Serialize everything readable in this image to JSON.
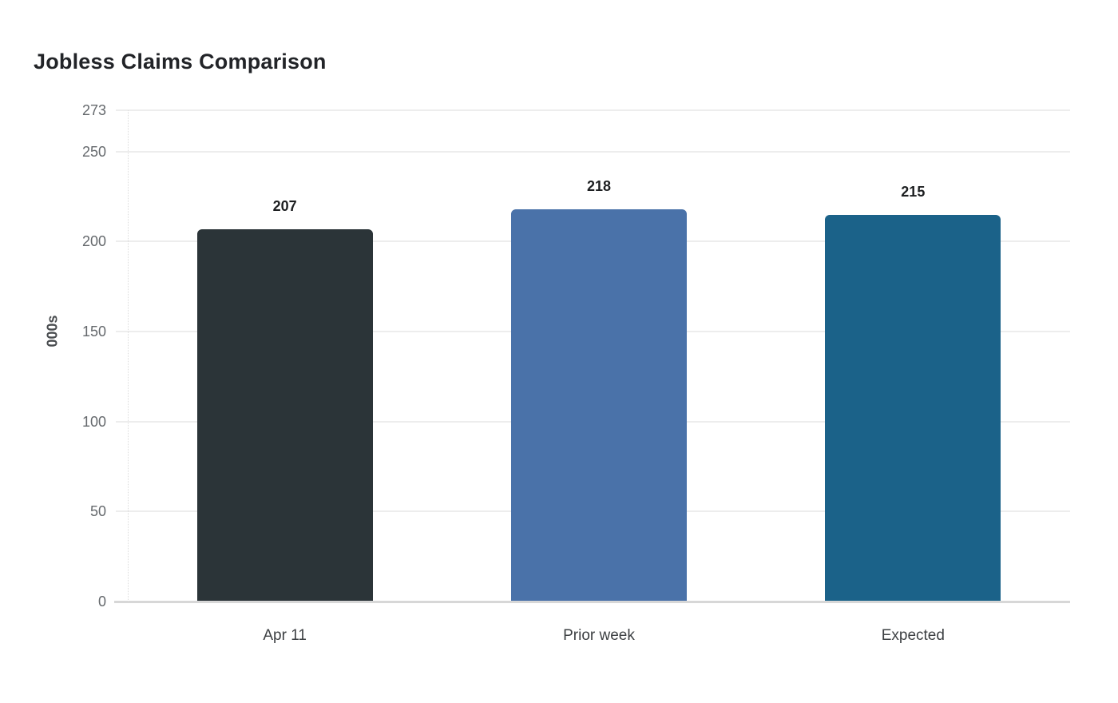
{
  "page": {
    "background_color": "#ffffff"
  },
  "chart_data": {
    "type": "bar",
    "title": "Jobless Claims Comparison",
    "xlabel": "",
    "ylabel": "000s",
    "categories": [
      "Apr 11",
      "Prior week",
      "Expected"
    ],
    "values": [
      207,
      218,
      215
    ],
    "data_labels": [
      "207",
      "218",
      "215"
    ],
    "bar_colors": [
      "#2b3438",
      "#4a72a9",
      "#1b6289"
    ],
    "ytick_values": [
      0,
      50,
      100,
      150,
      200,
      250,
      273
    ],
    "ytick_labels": [
      "0",
      "50",
      "100",
      "150",
      "200",
      "250",
      "273"
    ],
    "ylim": [
      0,
      273
    ],
    "grid": true,
    "legend_position": "none",
    "colors": {
      "gridline": "#ededed",
      "baseline": "#d7d7d7",
      "tick_label": "#65696d",
      "title": "#222428",
      "value_label": "#1d1f21"
    }
  }
}
